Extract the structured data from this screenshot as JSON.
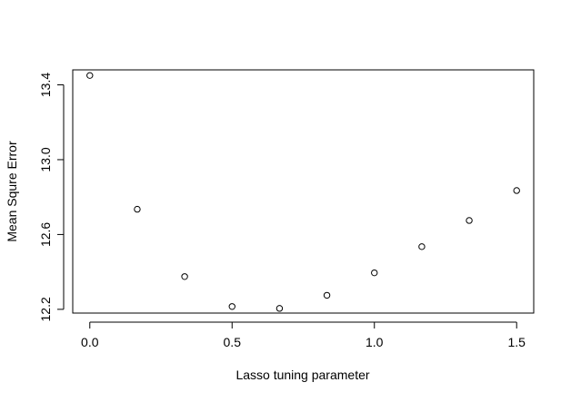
{
  "chart_data": {
    "type": "scatter",
    "title": "",
    "xlabel": "Lasso tuning parameter",
    "ylabel": "Mean Squre Error",
    "xlim": [
      -0.06,
      1.56
    ],
    "ylim": [
      12.18,
      13.48
    ],
    "x_ticks": [
      0.0,
      0.5,
      1.0,
      1.5
    ],
    "x_tick_labels": [
      "0.0",
      "0.5",
      "1.0",
      "1.5"
    ],
    "y_ticks": [
      12.2,
      12.6,
      13.0,
      13.4
    ],
    "y_tick_labels": [
      "12.2",
      "12.6",
      "13.0",
      "13.4"
    ],
    "grid": false,
    "marker": "open-circle",
    "series": [
      {
        "x": [
          0.0,
          0.1667,
          0.3333,
          0.5,
          0.6667,
          0.8333,
          1.0,
          1.1667,
          1.3333,
          1.5
        ],
        "y": [
          13.45,
          12.735,
          12.375,
          12.215,
          12.205,
          12.275,
          12.395,
          12.535,
          12.675,
          12.835
        ]
      }
    ]
  }
}
